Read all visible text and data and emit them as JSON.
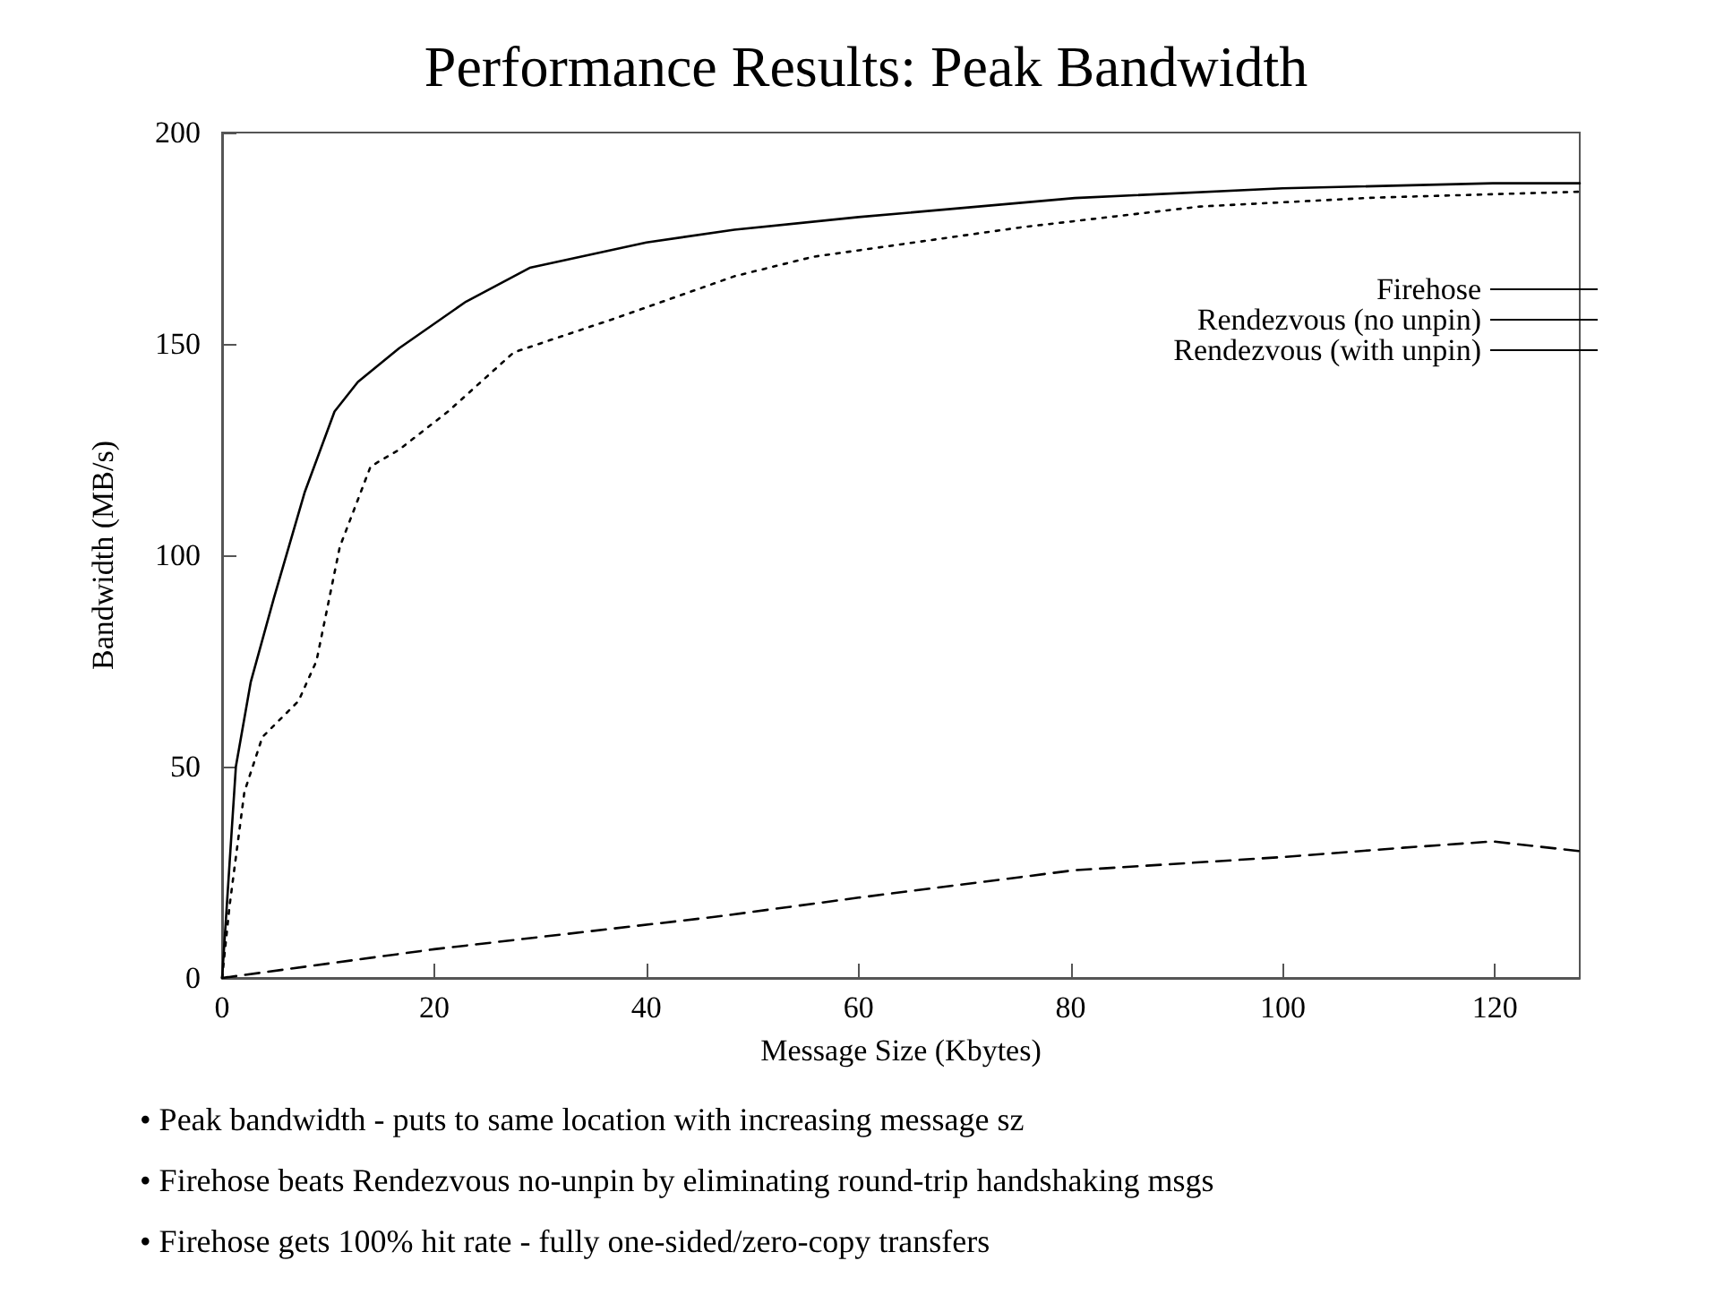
{
  "chart_data": {
    "type": "line",
    "title": "Performance Results: Peak Bandwidth",
    "xlabel": "Message Size (Kbytes)",
    "ylabel": "Bandwidth (MB/s)",
    "xlim": [
      0,
      128
    ],
    "xticks": [
      0,
      20,
      40,
      60,
      80,
      100,
      120
    ],
    "ylim": [
      0,
      200
    ],
    "yticks": [
      0,
      50,
      100,
      150,
      200
    ],
    "grid": false,
    "legend": "top right",
    "marker": "none",
    "series": [
      {
        "name": "Firehose",
        "color": "#000000",
        "line_style": "solid",
        "x": [
          0,
          1.3,
          2.7,
          4.9,
          7.8,
          10.6,
          12.8,
          16.7,
          23,
          29,
          40,
          48.3,
          60,
          80.4,
          100,
          119.8,
          128
        ],
        "values": [
          0,
          50,
          70,
          90,
          115,
          134,
          141,
          149,
          160,
          168,
          174,
          177,
          180,
          184.5,
          186.8,
          188,
          188
        ]
      },
      {
        "name": "Rendezvous (no unpin)",
        "color": "#000000",
        "line_style": "dotted",
        "x": [
          0,
          0.7,
          2.1,
          3.8,
          7.2,
          8.9,
          11.1,
          14,
          16.7,
          21.3,
          27.5,
          37,
          48.3,
          55.7,
          75.4,
          92.2,
          108.6,
          128
        ],
        "values": [
          0,
          17,
          44,
          57,
          65.5,
          75,
          102,
          121,
          125,
          134,
          148,
          156,
          166,
          170.6,
          177.6,
          182.5,
          184.6,
          186
        ]
      },
      {
        "name": "Rendezvous (with unpin)",
        "color": "#000000",
        "line_style": "dashed",
        "x": [
          0,
          20,
          46.6,
          60,
          80.4,
          100,
          111.3,
          119.8,
          128
        ],
        "values": [
          0,
          6.8,
          14.5,
          19,
          25.5,
          28.6,
          30.8,
          32.3,
          30
        ]
      }
    ],
    "annotations": [
      "• Peak bandwidth - puts to same location with increasing message sz",
      "• Firehose beats Rendezvous no-unpin by eliminating round-trip handshaking msgs",
      "• Firehose gets 100% hit rate - fully one-sided/zero-copy transfers"
    ]
  }
}
